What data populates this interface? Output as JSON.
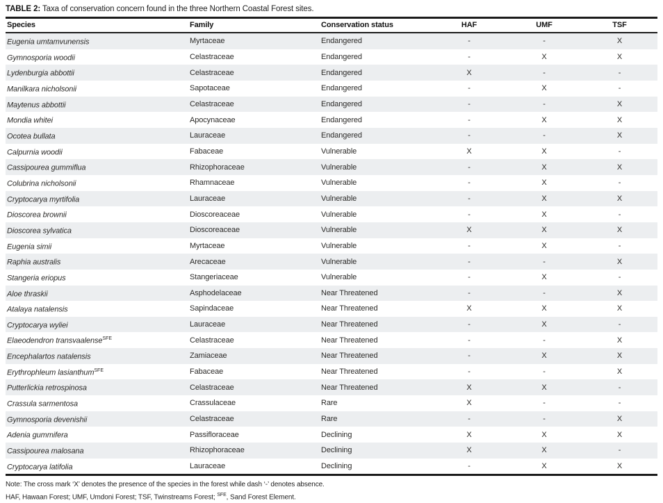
{
  "caption": {
    "label": "TABLE 2:",
    "text": " Taxa of conservation concern found in the three Northern Coastal Forest sites."
  },
  "table": {
    "columns": [
      "Species",
      "Family",
      "Conservation status",
      "HAF",
      "UMF",
      "TSF"
    ],
    "rows": [
      {
        "species": "Eugenia umtamvunensis",
        "sup": "",
        "family": "Myrtaceae",
        "status": "Endangered",
        "haf": "-",
        "umf": "-",
        "tsf": "X"
      },
      {
        "species": "Gymnosporia woodii",
        "sup": "",
        "family": "Celastraceae",
        "status": "Endangered",
        "haf": "-",
        "umf": "X",
        "tsf": "X"
      },
      {
        "species": "Lydenburgia abbottii",
        "sup": "",
        "family": "Celastraceae",
        "status": "Endangered",
        "haf": "X",
        "umf": "-",
        "tsf": "-"
      },
      {
        "species": "Manilkara nicholsonii",
        "sup": "",
        "family": "Sapotaceae",
        "status": "Endangered",
        "haf": "-",
        "umf": "X",
        "tsf": "-"
      },
      {
        "species": "Maytenus abbottii",
        "sup": "",
        "family": "Celastraceae",
        "status": "Endangered",
        "haf": "-",
        "umf": "-",
        "tsf": "X"
      },
      {
        "species": "Mondia whitei",
        "sup": "",
        "family": "Apocynaceae",
        "status": "Endangered",
        "haf": "-",
        "umf": "X",
        "tsf": "X"
      },
      {
        "species": "Ocotea bullata",
        "sup": "",
        "family": "Lauraceae",
        "status": "Endangered",
        "haf": "-",
        "umf": "-",
        "tsf": "X"
      },
      {
        "species": "Calpurnia woodii",
        "sup": "",
        "family": "Fabaceae",
        "status": "Vulnerable",
        "haf": "X",
        "umf": "X",
        "tsf": "-"
      },
      {
        "species": "Cassipourea gummiflua",
        "sup": "",
        "family": "Rhizophoraceae",
        "status": "Vulnerable",
        "haf": "-",
        "umf": "X",
        "tsf": "X"
      },
      {
        "species": "Colubrina nicholsonii",
        "sup": "",
        "family": "Rhamnaceae",
        "status": "Vulnerable",
        "haf": "-",
        "umf": "X",
        "tsf": "-"
      },
      {
        "species": "Cryptocarya myrtifolia",
        "sup": "",
        "family": "Lauraceae",
        "status": "Vulnerable",
        "haf": "-",
        "umf": "X",
        "tsf": "X"
      },
      {
        "species": "Dioscorea brownii",
        "sup": "",
        "family": "Dioscoreaceae",
        "status": "Vulnerable",
        "haf": "-",
        "umf": "X",
        "tsf": "-"
      },
      {
        "species": "Dioscorea sylvatica",
        "sup": "",
        "family": "Dioscoreaceae",
        "status": "Vulnerable",
        "haf": "X",
        "umf": "X",
        "tsf": "X"
      },
      {
        "species": "Eugenia simii",
        "sup": "",
        "family": "Myrtaceae",
        "status": "Vulnerable",
        "haf": "-",
        "umf": "X",
        "tsf": "-"
      },
      {
        "species": "Raphia australis",
        "sup": "",
        "family": "Arecaceae",
        "status": "Vulnerable",
        "haf": "-",
        "umf": "-",
        "tsf": "X"
      },
      {
        "species": "Stangeria eriopus",
        "sup": "",
        "family": "Stangeriaceae",
        "status": "Vulnerable",
        "haf": "-",
        "umf": "X",
        "tsf": "-"
      },
      {
        "species": "Aloe thraskii",
        "sup": "",
        "family": "Asphodelaceae",
        "status": "Near Threatened",
        "haf": "-",
        "umf": "-",
        "tsf": "X"
      },
      {
        "species": "Atalaya natalensis",
        "sup": "",
        "family": "Sapindaceae",
        "status": "Near Threatened",
        "haf": "X",
        "umf": "X",
        "tsf": "X"
      },
      {
        "species": "Cryptocarya wyliei",
        "sup": "",
        "family": "Lauraceae",
        "status": "Near Threatened",
        "haf": "-",
        "umf": "X",
        "tsf": "-"
      },
      {
        "species": "Elaeodendron transvaalense",
        "sup": "SFE",
        "family": "Celastraceae",
        "status": "Near Threatened",
        "haf": "-",
        "umf": "-",
        "tsf": "X"
      },
      {
        "species": "Encephalartos natalensis",
        "sup": "",
        "family": "Zamiaceae",
        "status": "Near Threatened",
        "haf": "-",
        "umf": "X",
        "tsf": "X"
      },
      {
        "species": "Erythrophleum lasianthum",
        "sup": "SFE",
        "family": "Fabaceae",
        "status": "Near Threatened",
        "haf": "-",
        "umf": "-",
        "tsf": "X"
      },
      {
        "species": "Putterlickia retrospinosa",
        "sup": "",
        "family": "Celastraceae",
        "status": "Near Threatened",
        "haf": "X",
        "umf": "X",
        "tsf": "-"
      },
      {
        "species": "Crassula sarmentosa",
        "sup": "",
        "family": "Crassulaceae",
        "status": "Rare",
        "haf": "X",
        "umf": "-",
        "tsf": "-"
      },
      {
        "species": "Gymnosporia devenishii",
        "sup": "",
        "family": "Celastraceae",
        "status": "Rare",
        "haf": "-",
        "umf": "-",
        "tsf": "X"
      },
      {
        "species": "Adenia gummifera",
        "sup": "",
        "family": "Passifloraceae",
        "status": "Declining",
        "haf": "X",
        "umf": "X",
        "tsf": "X"
      },
      {
        "species": "Cassipourea malosana",
        "sup": "",
        "family": "Rhizophoraceae",
        "status": "Declining",
        "haf": "X",
        "umf": "X",
        "tsf": "-"
      },
      {
        "species": "Cryptocarya latifolia",
        "sup": "",
        "family": "Lauraceae",
        "status": "Declining",
        "haf": "-",
        "umf": "X",
        "tsf": "X"
      }
    ]
  },
  "notes": {
    "line1": "Note: The cross mark ‘X’ denotes the presence of the species in the forest while dash ‘-’ denotes absence.",
    "line2_prefix": "HAF, Hawaan Forest; UMF, Umdoni Forest; TSF, Twinstreams Forest; ",
    "line2_sup": "SFE",
    "line2_suffix": ", Sand Forest Element."
  }
}
